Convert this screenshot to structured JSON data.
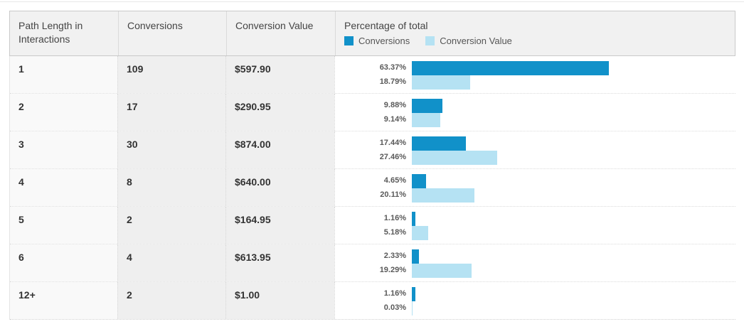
{
  "table": {
    "headers": {
      "path_length": "Path Length in Interactions",
      "conversions": "Conversions",
      "conversion_value": "Conversion Value",
      "percentage_title": "Percentage of total"
    },
    "legend": [
      {
        "label": "Conversions",
        "color": "#1191c9"
      },
      {
        "label": "Conversion Value",
        "color": "#b5e2f3"
      }
    ]
  },
  "rows": [
    {
      "path_length": "1",
      "conversions": "109",
      "conversion_value": "$597.90",
      "conversions_pct": 63.37,
      "conversions_pct_label": "63.37%",
      "value_pct": 18.79,
      "value_pct_label": "18.79%"
    },
    {
      "path_length": "2",
      "conversions": "17",
      "conversion_value": "$290.95",
      "conversions_pct": 9.88,
      "conversions_pct_label": "9.88%",
      "value_pct": 9.14,
      "value_pct_label": "9.14%"
    },
    {
      "path_length": "3",
      "conversions": "30",
      "conversion_value": "$874.00",
      "conversions_pct": 17.44,
      "conversions_pct_label": "17.44%",
      "value_pct": 27.46,
      "value_pct_label": "27.46%"
    },
    {
      "path_length": "4",
      "conversions": "8",
      "conversion_value": "$640.00",
      "conversions_pct": 4.65,
      "conversions_pct_label": "4.65%",
      "value_pct": 20.11,
      "value_pct_label": "20.11%"
    },
    {
      "path_length": "5",
      "conversions": "2",
      "conversion_value": "$164.95",
      "conversions_pct": 1.16,
      "conversions_pct_label": "1.16%",
      "value_pct": 5.18,
      "value_pct_label": "5.18%"
    },
    {
      "path_length": "6",
      "conversions": "4",
      "conversion_value": "$613.95",
      "conversions_pct": 2.33,
      "conversions_pct_label": "2.33%",
      "value_pct": 19.29,
      "value_pct_label": "19.29%"
    },
    {
      "path_length": "12+",
      "conversions": "2",
      "conversion_value": "$1.00",
      "conversions_pct": 1.16,
      "conversions_pct_label": "1.16%",
      "value_pct": 0.03,
      "value_pct_label": "0.03%"
    }
  ],
  "chart_data": {
    "type": "bar",
    "orientation": "horizontal",
    "title": "Percentage of total",
    "categories": [
      "1",
      "2",
      "3",
      "4",
      "5",
      "6",
      "12+"
    ],
    "series": [
      {
        "name": "Conversions",
        "unit": "%",
        "color": "#1191c9",
        "values": [
          63.37,
          9.88,
          17.44,
          4.65,
          1.16,
          2.33,
          1.16
        ]
      },
      {
        "name": "Conversion Value",
        "unit": "%",
        "color": "#b5e2f3",
        "values": [
          18.79,
          9.14,
          27.46,
          20.11,
          5.18,
          19.29,
          0.03
        ]
      }
    ],
    "xlim": [
      0,
      100
    ],
    "grid": false,
    "legend_position": "top",
    "companion_columns": {
      "Conversions": [
        109,
        17,
        30,
        8,
        2,
        4,
        2
      ],
      "Conversion Value": [
        "$597.90",
        "$290.95",
        "$874.00",
        "$640.00",
        "$164.95",
        "$613.95",
        "$1.00"
      ]
    }
  }
}
